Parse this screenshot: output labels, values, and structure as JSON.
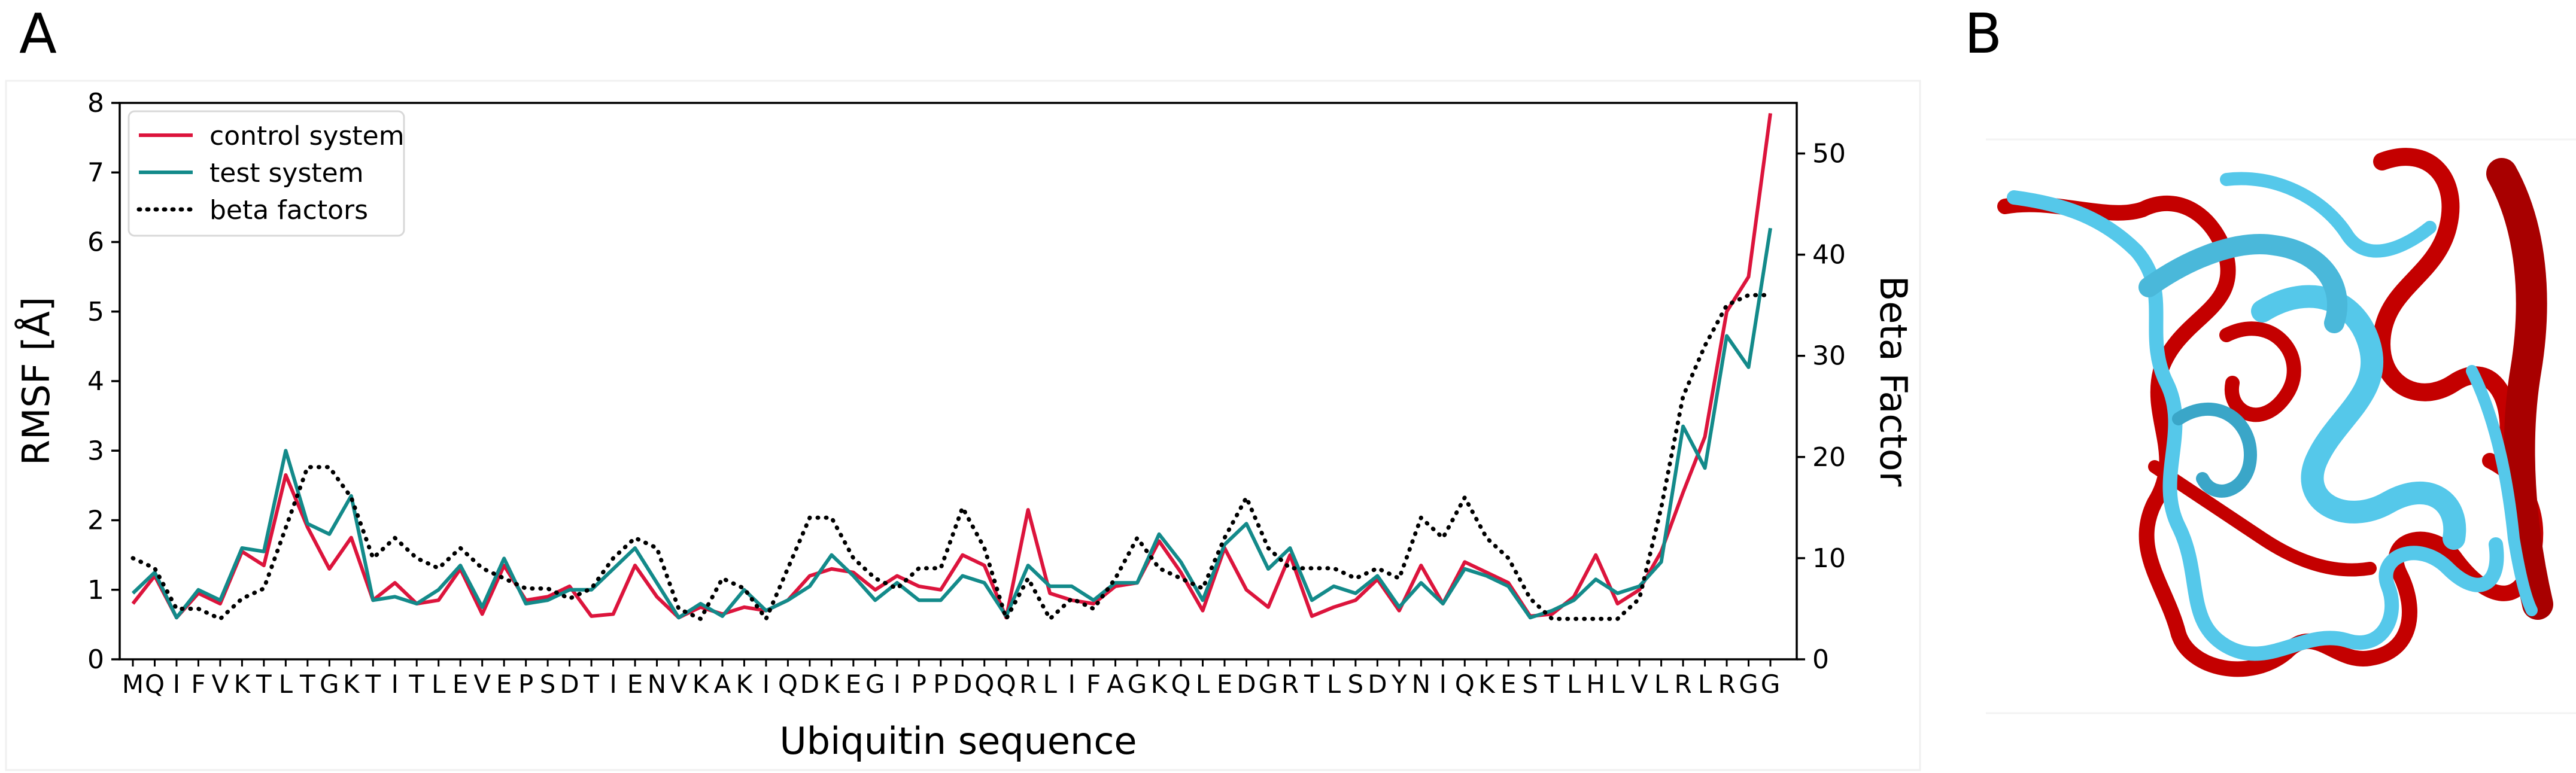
{
  "panels": {
    "a_label": "A",
    "b_label": "B"
  },
  "chart_data": {
    "type": "line",
    "xlabel": "Ubiquitin sequence",
    "ylabel": "RMSF [Å]",
    "y2label": "Beta Factor",
    "ylim": [
      0,
      8
    ],
    "y2lim": [
      0,
      55
    ],
    "yticks": [
      "0",
      "1",
      "2",
      "3",
      "4",
      "5",
      "6",
      "7",
      "8"
    ],
    "y2ticks": [
      "0",
      "10",
      "20",
      "30",
      "40",
      "50"
    ],
    "grid": false,
    "legend_position": "top-left",
    "categories": [
      "M",
      "Q",
      "I",
      "F",
      "V",
      "K",
      "T",
      "L",
      "T",
      "G",
      "K",
      "T",
      "I",
      "T",
      "L",
      "E",
      "V",
      "E",
      "P",
      "S",
      "D",
      "T",
      "I",
      "E",
      "N",
      "V",
      "K",
      "A",
      "K",
      "I",
      "Q",
      "D",
      "K",
      "E",
      "G",
      "I",
      "P",
      "P",
      "D",
      "Q",
      "Q",
      "R",
      "L",
      "I",
      "F",
      "A",
      "G",
      "K",
      "Q",
      "L",
      "E",
      "D",
      "G",
      "R",
      "T",
      "L",
      "S",
      "D",
      "Y",
      "N",
      "I",
      "Q",
      "K",
      "E",
      "S",
      "T",
      "L",
      "H",
      "L",
      "V",
      "L",
      "R",
      "L",
      "R",
      "G",
      "G"
    ],
    "series": [
      {
        "name": "control system",
        "color": "#dc143c",
        "style": "solid",
        "axis": "left",
        "values": [
          0.8,
          1.2,
          0.6,
          0.95,
          0.8,
          1.55,
          1.35,
          2.65,
          1.9,
          1.3,
          1.75,
          0.85,
          1.1,
          0.8,
          0.85,
          1.3,
          0.65,
          1.35,
          0.85,
          0.9,
          1.05,
          0.62,
          0.65,
          1.35,
          0.9,
          0.6,
          0.75,
          0.65,
          0.75,
          0.7,
          0.85,
          1.2,
          1.3,
          1.25,
          1.0,
          1.2,
          1.05,
          1.0,
          1.5,
          1.35,
          0.6,
          2.15,
          0.95,
          0.85,
          0.8,
          1.05,
          1.1,
          1.7,
          1.25,
          0.7,
          1.6,
          1.0,
          0.75,
          1.5,
          0.62,
          0.75,
          0.85,
          1.15,
          0.7,
          1.35,
          0.8,
          1.4,
          1.25,
          1.1,
          0.62,
          0.65,
          0.9,
          1.5,
          0.8,
          1.0,
          1.55,
          2.4,
          3.2,
          5.0,
          5.5,
          7.85
        ]
      },
      {
        "name": "test system",
        "color": "#138a8a",
        "style": "solid",
        "axis": "left",
        "values": [
          0.95,
          1.25,
          0.6,
          1.0,
          0.85,
          1.6,
          1.55,
          3.0,
          1.95,
          1.8,
          2.35,
          0.85,
          0.9,
          0.8,
          1.0,
          1.35,
          0.75,
          1.45,
          0.8,
          0.85,
          1.0,
          1.0,
          1.3,
          1.6,
          1.1,
          0.6,
          0.8,
          0.62,
          1.0,
          0.7,
          0.85,
          1.05,
          1.5,
          1.2,
          0.85,
          1.1,
          0.85,
          0.85,
          1.2,
          1.1,
          0.62,
          1.35,
          1.05,
          1.05,
          0.85,
          1.1,
          1.1,
          1.8,
          1.4,
          0.85,
          1.65,
          1.95,
          1.3,
          1.6,
          0.85,
          1.05,
          0.95,
          1.2,
          0.75,
          1.1,
          0.8,
          1.3,
          1.2,
          1.05,
          0.6,
          0.7,
          0.85,
          1.15,
          0.95,
          1.05,
          1.4,
          3.35,
          2.75,
          4.65,
          4.2,
          6.2
        ]
      },
      {
        "name": "beta factors",
        "color": "#000000",
        "style": "dotted",
        "axis": "right",
        "values": [
          10,
          9,
          5,
          5,
          4,
          6,
          7,
          13,
          19,
          19,
          16,
          10,
          12,
          10,
          9,
          11,
          9,
          8,
          7,
          7,
          6,
          7,
          10,
          12,
          11,
          5,
          4,
          8,
          7,
          4,
          9,
          14,
          14,
          10,
          8,
          7,
          9,
          9,
          15,
          11,
          4,
          8,
          4,
          6,
          5,
          8,
          12,
          9,
          8,
          7,
          12,
          16,
          11,
          9,
          9,
          9,
          8,
          9,
          8,
          14,
          12,
          16,
          12,
          10,
          6,
          4,
          4,
          4,
          4,
          6,
          15,
          26,
          31,
          35,
          36,
          36
        ]
      }
    ]
  }
}
